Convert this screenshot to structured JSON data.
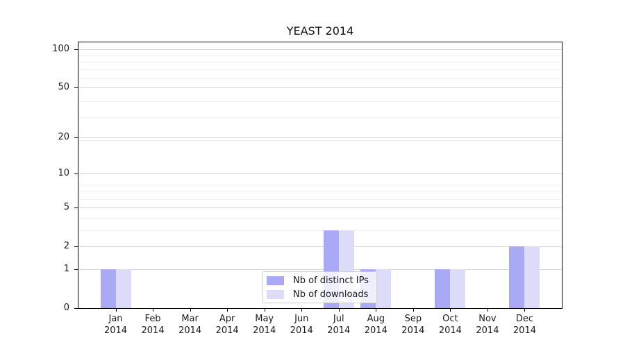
{
  "chart_data": {
    "type": "bar",
    "title": "YEAST 2014",
    "categories": [
      "Jan",
      "Feb",
      "Mar",
      "Apr",
      "May",
      "Jun",
      "Jul",
      "Aug",
      "Sep",
      "Oct",
      "Nov",
      "Dec"
    ],
    "year": "2014",
    "series": [
      {
        "name": "Nb of distinct IPs",
        "color": "#a9a9f5",
        "values": [
          1,
          0,
          0,
          0,
          0,
          0,
          3,
          1,
          0,
          1,
          0,
          2
        ]
      },
      {
        "name": "Nb of downloads",
        "color": "#dcdcf8",
        "values": [
          1,
          0,
          0,
          0,
          0,
          0,
          3,
          1,
          0,
          1,
          0,
          2
        ]
      }
    ],
    "xlabel": "",
    "ylabel": "",
    "y_scale": "log10(1+v)",
    "y_ticks": [
      0,
      1,
      2,
      5,
      10,
      20,
      50,
      100
    ],
    "y_minor_gridlines": [
      3,
      4,
      6,
      7,
      8,
      19,
      29,
      39,
      59,
      69,
      79,
      89
    ],
    "ylim": [
      0,
      113
    ],
    "grid": "horizontal",
    "legend_position": "lower-center-inside"
  },
  "colors": {
    "grid_major": "#d2d2d2",
    "grid_minor": "#f0f0f0",
    "spine": "#000000",
    "text": "#1a1a1a",
    "legend_border": "#cccccc",
    "legend_bg": "rgba(255,255,255,0.8)"
  }
}
